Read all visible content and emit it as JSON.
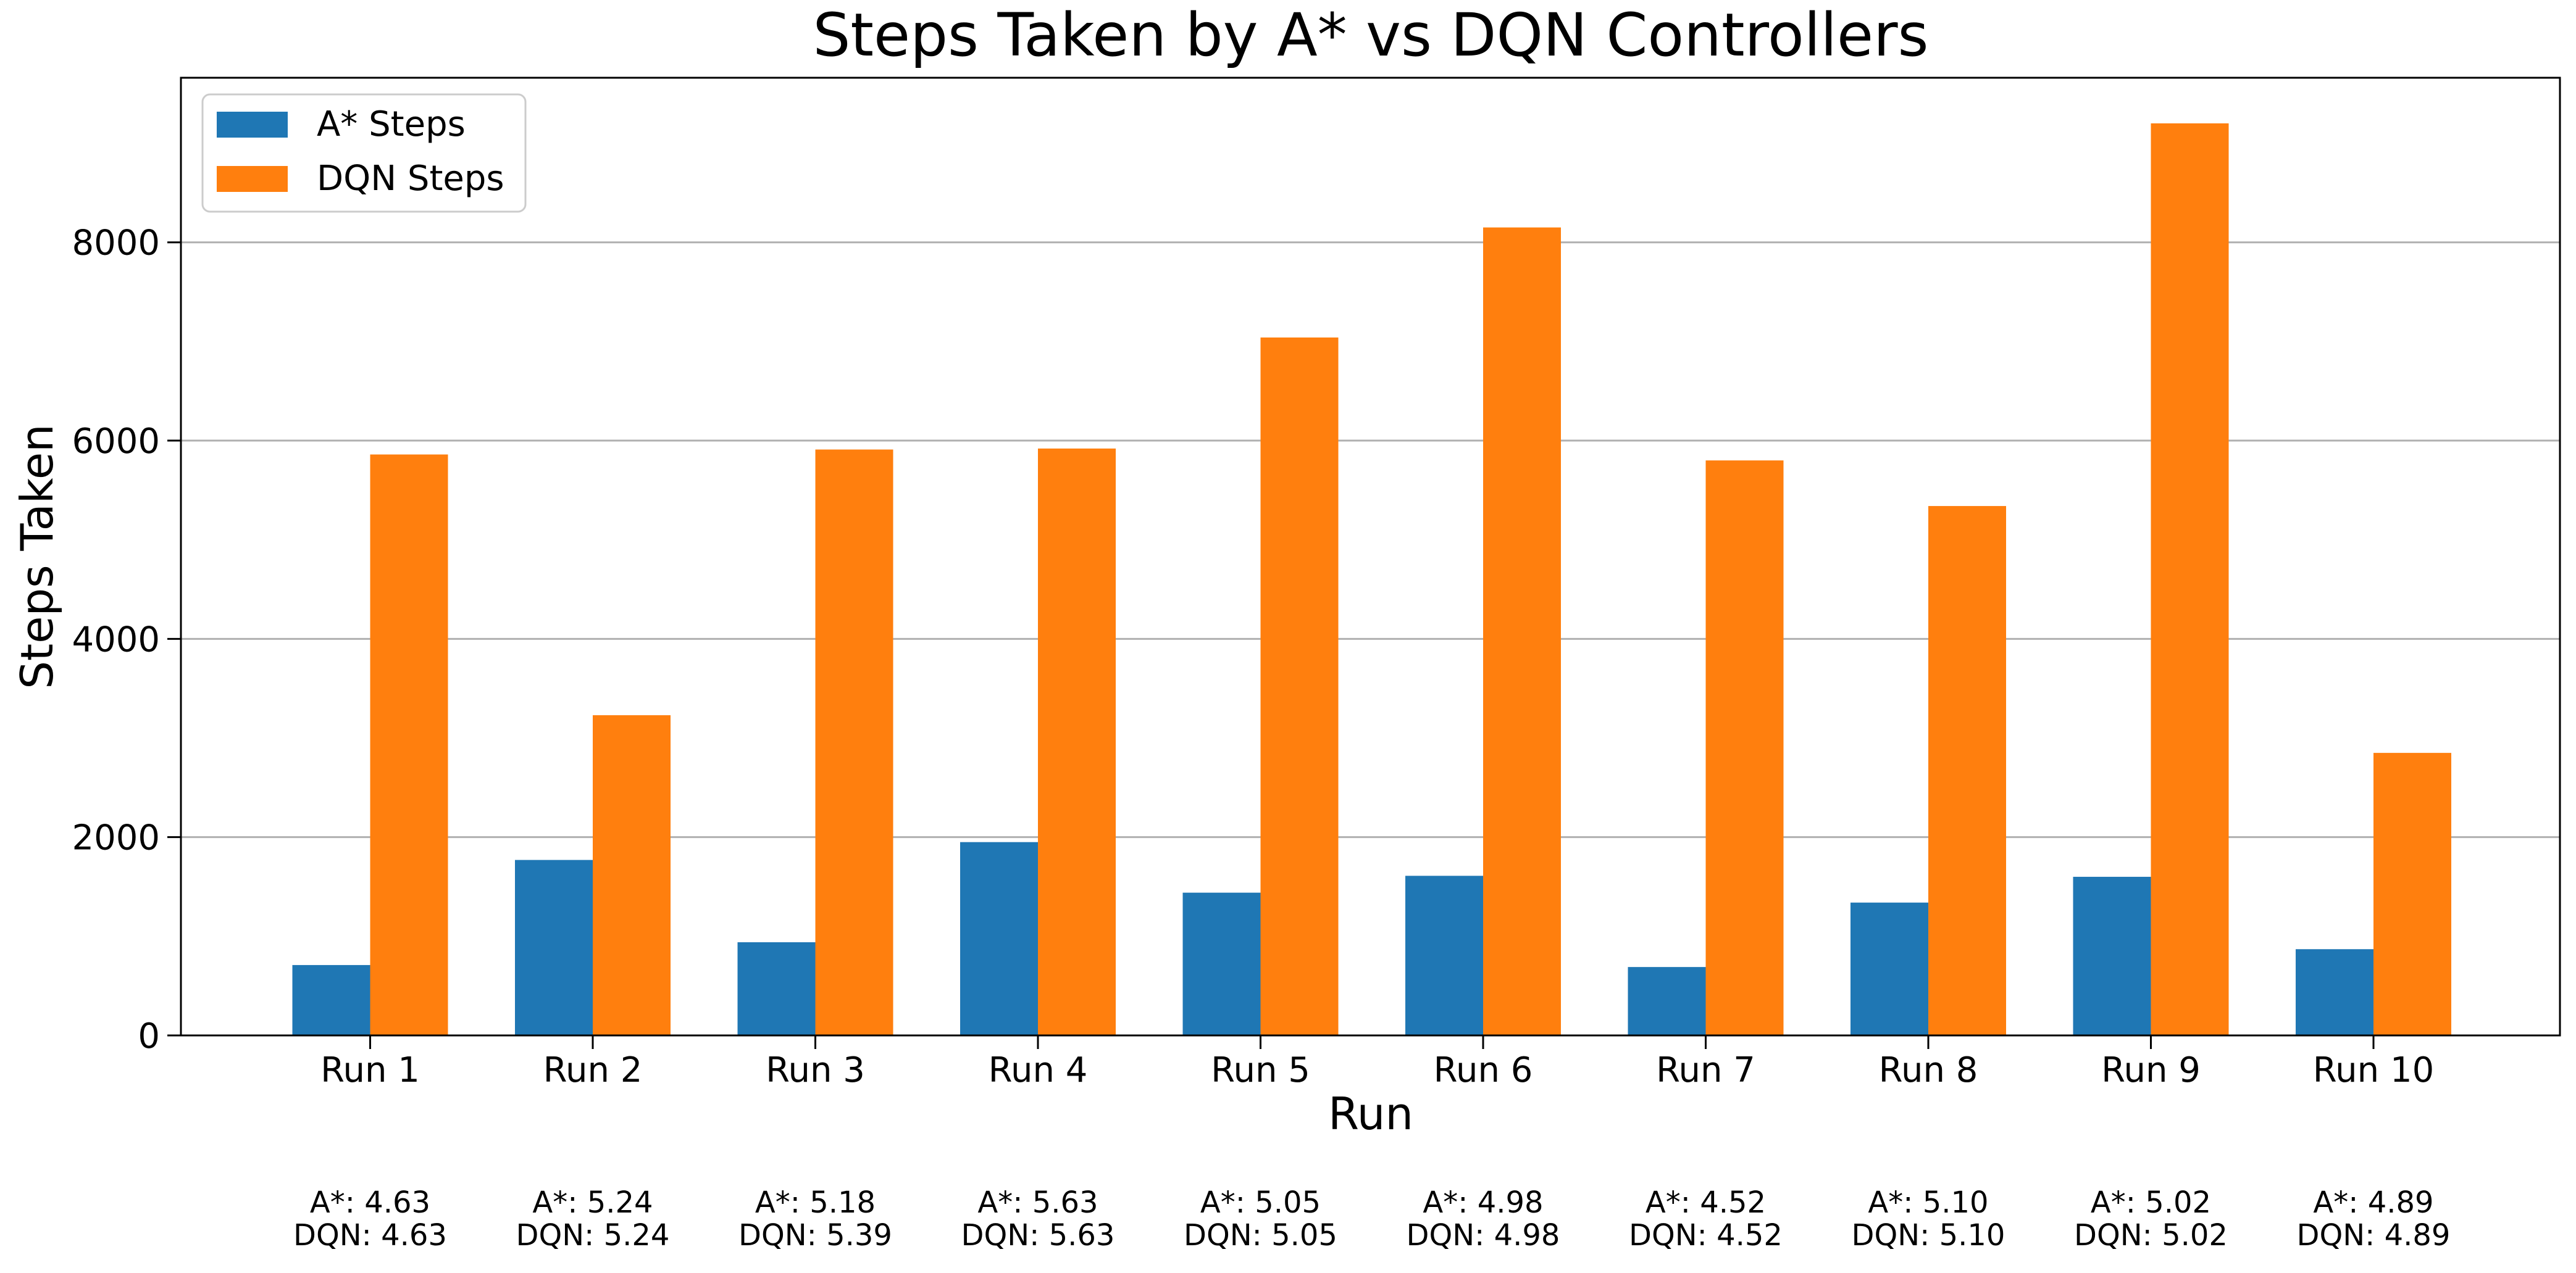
{
  "chart_data": {
    "type": "bar",
    "title": "Steps Taken by A* vs DQN Controllers",
    "xlabel": "Run",
    "ylabel": "Steps Taken",
    "categories": [
      "Run 1",
      "Run 2",
      "Run 3",
      "Run 4",
      "Run 5",
      "Run 6",
      "Run 7",
      "Run 8",
      "Run 9",
      "Run 10"
    ],
    "series": [
      {
        "name": "A* Steps",
        "color": "#1f77b4",
        "values": [
          710,
          1770,
          940,
          1950,
          1440,
          1610,
          690,
          1340,
          1600,
          870
        ]
      },
      {
        "name": "DQN Steps",
        "color": "#ff7f0e",
        "values": [
          5860,
          3230,
          5910,
          5920,
          7040,
          8150,
          5800,
          5340,
          9200,
          2850
        ]
      }
    ],
    "annotations": [
      {
        "astar": "A*: 4.63",
        "dqn": "DQN: 4.63"
      },
      {
        "astar": "A*: 5.24",
        "dqn": "DQN: 5.24"
      },
      {
        "astar": "A*: 5.18",
        "dqn": "DQN: 5.39"
      },
      {
        "astar": "A*: 5.63",
        "dqn": "DQN: 5.63"
      },
      {
        "astar": "A*: 5.05",
        "dqn": "DQN: 5.05"
      },
      {
        "astar": "A*: 4.98",
        "dqn": "DQN: 4.98"
      },
      {
        "astar": "A*: 4.52",
        "dqn": "DQN: 4.52"
      },
      {
        "astar": "A*: 5.10",
        "dqn": "DQN: 5.10"
      },
      {
        "astar": "A*: 5.02",
        "dqn": "DQN: 5.02"
      },
      {
        "astar": "A*: 4.89",
        "dqn": "DQN: 4.89"
      }
    ],
    "yticks": [
      0,
      2000,
      4000,
      6000,
      8000
    ],
    "ylim": [
      0,
      9660
    ],
    "grid": "y",
    "legend_position": "top-left"
  }
}
